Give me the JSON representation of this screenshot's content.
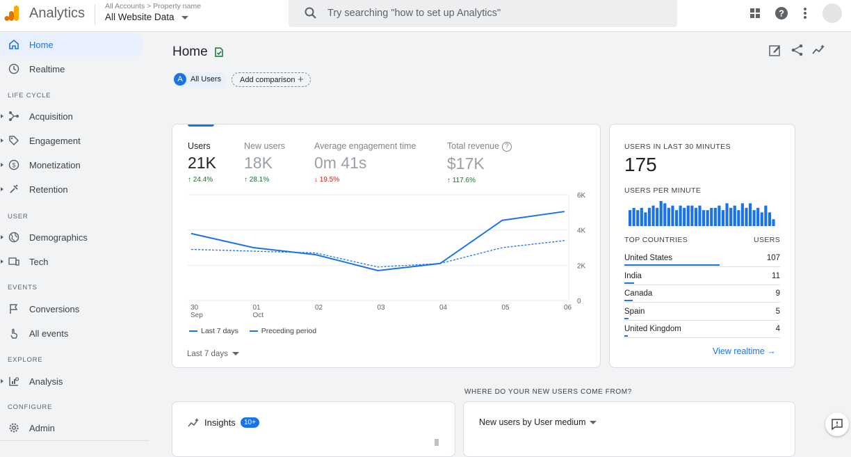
{
  "header": {
    "app_title": "Analytics",
    "breadcrumb": [
      "All Accounts",
      "Property name"
    ],
    "breadcrumb_sep": ">",
    "property": "All Website Data",
    "search_placeholder": "Try searching \"how to set up Analytics\"",
    "icons": [
      "apps-icon",
      "help-icon",
      "more-vert-icon"
    ]
  },
  "sidebar": {
    "top_items": [
      {
        "label": "Home",
        "icon": "home-icon",
        "active": true
      },
      {
        "label": "Realtime",
        "icon": "clock-icon"
      }
    ],
    "sections": [
      {
        "title": "LIFE CYCLE",
        "items": [
          {
            "label": "Acquisition",
            "icon": "acquisition-icon"
          },
          {
            "label": "Engagement",
            "icon": "tag-icon"
          },
          {
            "label": "Monetization",
            "icon": "dollar-icon"
          },
          {
            "label": "Retention",
            "icon": "retention-icon"
          }
        ]
      },
      {
        "title": "USER",
        "items": [
          {
            "label": "Demographics",
            "icon": "globe-icon"
          },
          {
            "label": "Tech",
            "icon": "devices-icon"
          }
        ]
      },
      {
        "title": "EVENTS",
        "items": [
          {
            "label": "Conversions",
            "icon": "flag-icon"
          },
          {
            "label": "All events",
            "icon": "touch-icon"
          }
        ]
      },
      {
        "title": "EXPLORE",
        "items": [
          {
            "label": "Analysis",
            "icon": "analysis-icon"
          }
        ]
      },
      {
        "title": "CONFIGURE",
        "items": [
          {
            "label": "Admin",
            "icon": "gear-icon"
          }
        ]
      }
    ]
  },
  "main": {
    "title": "Home",
    "chips": {
      "user_badge": "A",
      "users": "All Users",
      "add_comparison": "Add comparison",
      "add_icon": "+"
    },
    "metrics": [
      {
        "label": "Users",
        "value": "21K",
        "delta": "24.4%",
        "dir": "up"
      },
      {
        "label": "New users",
        "value": "18K",
        "delta": "28.1%",
        "dir": "up"
      },
      {
        "label": "Average engagement time",
        "value": "0m 41s",
        "delta": "19.5%",
        "dir": "down"
      },
      {
        "label": "Total revenue",
        "value": "$17K",
        "delta": "117.6%",
        "dir": "up",
        "help": "?"
      }
    ],
    "date_range": "Last 7 days",
    "arrows": {
      "up": "↑",
      "down": "↓"
    }
  },
  "chart_data": {
    "type": "line",
    "x_ticks": [
      [
        "30",
        "Sep"
      ],
      [
        "01",
        "Oct"
      ],
      [
        "02",
        ""
      ],
      [
        "03",
        ""
      ],
      [
        "04",
        ""
      ],
      [
        "05",
        ""
      ],
      [
        "06",
        ""
      ]
    ],
    "y_ticks": [
      "0",
      "2K",
      "4K",
      "6K"
    ],
    "ylim": [
      0,
      6000
    ],
    "series": [
      {
        "name": "Last 7 days",
        "style": "solid",
        "values": [
          3800,
          3000,
          2600,
          1700,
          2100,
          4550,
          5050
        ]
      },
      {
        "name": "Preceding period",
        "style": "dashed",
        "values": [
          2900,
          2800,
          2700,
          1900,
          2100,
          3000,
          3400
        ]
      }
    ],
    "color": "#1a73e8"
  },
  "realtime": {
    "title": "USERS IN LAST 30 MINUTES",
    "value": "175",
    "per_minute_title": "USERS PER MINUTE",
    "per_minute": [
      7,
      8,
      7,
      8,
      6,
      8,
      9,
      8,
      11,
      10,
      8,
      9,
      7,
      9,
      8,
      9,
      9,
      8,
      9,
      7,
      7,
      8,
      8,
      9,
      7,
      10,
      8,
      9,
      7,
      10,
      8,
      10,
      7,
      8,
      6,
      9,
      6,
      3
    ],
    "countries_header": "TOP COUNTRIES",
    "users_header": "USERS",
    "countries": [
      {
        "name": "United States",
        "value": "107",
        "users": 107
      },
      {
        "name": "India",
        "value": "11",
        "users": 11
      },
      {
        "name": "Canada",
        "value": "9",
        "users": 9
      },
      {
        "name": "Spain",
        "value": "5",
        "users": 5
      },
      {
        "name": "United Kingdom",
        "value": "4",
        "users": 4
      }
    ],
    "link": "View realtime",
    "link_arrow": "→"
  },
  "lower": {
    "question": "WHERE DO YOUR NEW USERS COME FROM?",
    "insights_title": "Insights",
    "insights_badge": "10+",
    "new_users_title": "New users by User medium"
  }
}
